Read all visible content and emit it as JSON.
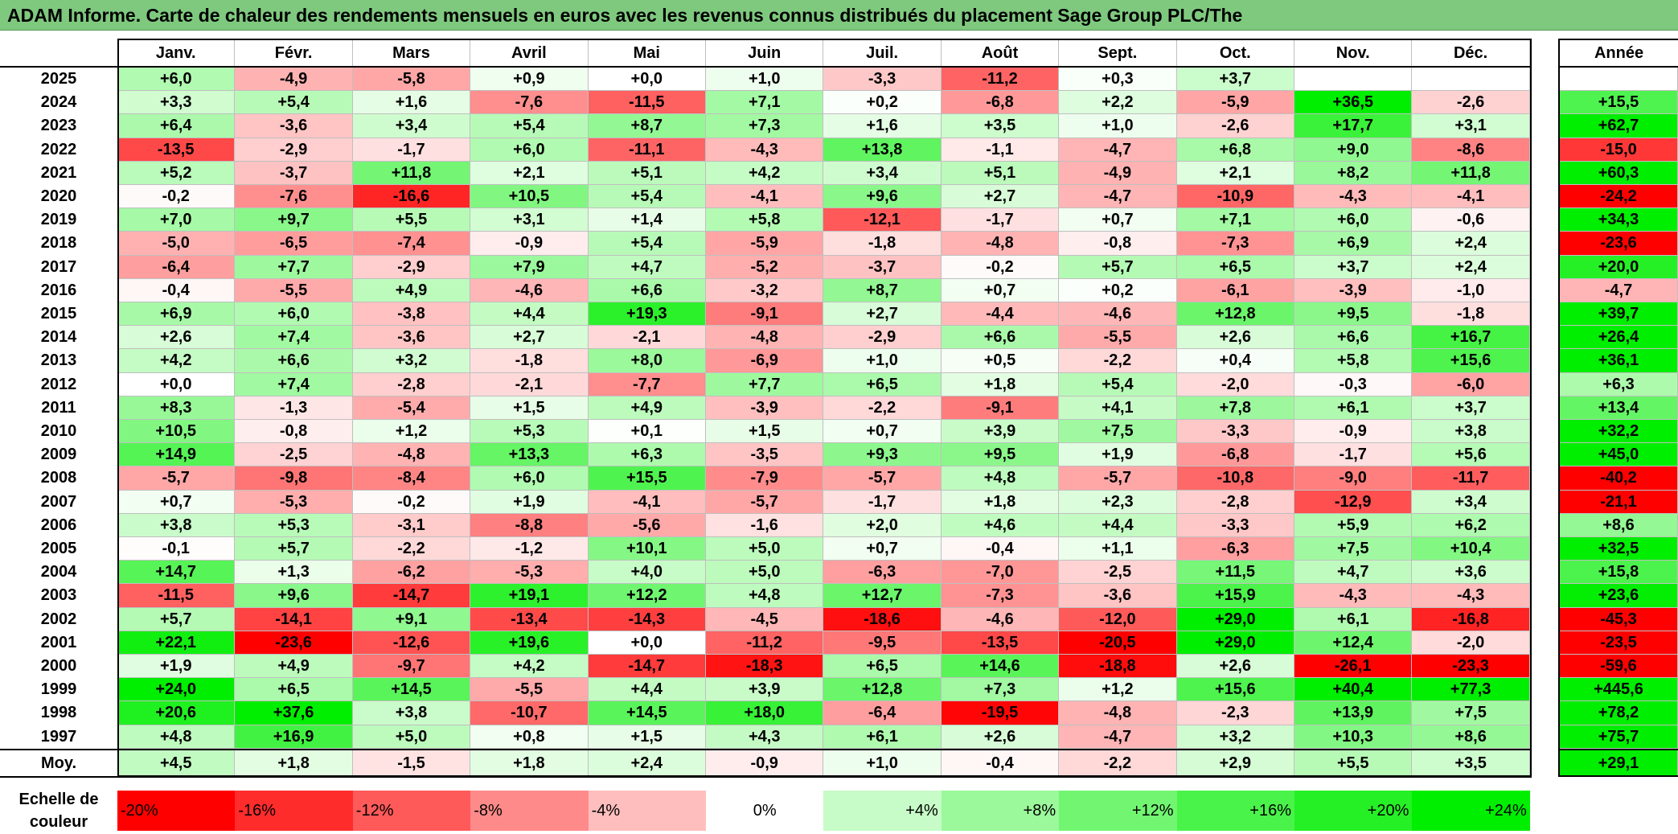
{
  "title": "ADAM Informe. Carte de chaleur des rendements mensuels en euros avec les revenus connus distribués du placement Sage Group PLC/The",
  "chart_data": {
    "type": "heatmap",
    "title": "ADAM Informe. Carte de chaleur des rendements mensuels en euros avec les revenus connus distribués du placement Sage Group PLC/The",
    "months": [
      "Janv.",
      "Févr.",
      "Mars",
      "Avril",
      "Mai",
      "Juin",
      "Juil.",
      "Août",
      "Sept.",
      "Oct.",
      "Nov.",
      "Déc."
    ],
    "year_header": "Année",
    "rows": [
      {
        "year": "2025",
        "values": [
          "+6,0",
          "-4,9",
          "-5,8",
          "+0,9",
          "+0,0",
          "+1,0",
          "-3,3",
          "-11,2",
          "+0,3",
          "+3,7",
          "",
          ""
        ],
        "annual": ""
      },
      {
        "year": "2024",
        "values": [
          "+3,3",
          "+5,4",
          "+1,6",
          "-7,6",
          "-11,5",
          "+7,1",
          "+0,2",
          "-6,8",
          "+2,2",
          "-5,9",
          "+36,5",
          "-2,6"
        ],
        "annual": "+15,5"
      },
      {
        "year": "2023",
        "values": [
          "+6,4",
          "-3,6",
          "+3,4",
          "+5,4",
          "+8,7",
          "+7,3",
          "+1,6",
          "+3,5",
          "+1,0",
          "-2,6",
          "+17,7",
          "+3,1"
        ],
        "annual": "+62,7"
      },
      {
        "year": "2022",
        "values": [
          "-13,5",
          "-2,9",
          "-1,7",
          "+6,0",
          "-11,1",
          "-4,3",
          "+13,8",
          "-1,1",
          "-4,7",
          "+6,8",
          "+9,0",
          "-8,6"
        ],
        "annual": "-15,0"
      },
      {
        "year": "2021",
        "values": [
          "+5,2",
          "-3,7",
          "+11,8",
          "+2,1",
          "+5,1",
          "+4,2",
          "+3,4",
          "+5,1",
          "-4,9",
          "+2,1",
          "+8,2",
          "+11,8"
        ],
        "annual": "+60,3"
      },
      {
        "year": "2020",
        "values": [
          "-0,2",
          "-7,6",
          "-16,6",
          "+10,5",
          "+5,4",
          "-4,1",
          "+9,6",
          "+2,7",
          "-4,7",
          "-10,9",
          "-4,3",
          "-4,1"
        ],
        "annual": "-24,2"
      },
      {
        "year": "2019",
        "values": [
          "+7,0",
          "+9,7",
          "+5,5",
          "+3,1",
          "+1,4",
          "+5,8",
          "-12,1",
          "-1,7",
          "+0,7",
          "+7,1",
          "+6,0",
          "-0,6"
        ],
        "annual": "+34,3"
      },
      {
        "year": "2018",
        "values": [
          "-5,0",
          "-6,5",
          "-7,4",
          "-0,9",
          "+5,4",
          "-5,9",
          "-1,8",
          "-4,8",
          "-0,8",
          "-7,3",
          "+6,9",
          "+2,4"
        ],
        "annual": "-23,6"
      },
      {
        "year": "2017",
        "values": [
          "-6,4",
          "+7,7",
          "-2,9",
          "+7,9",
          "+4,7",
          "-5,2",
          "-3,7",
          "-0,2",
          "+5,7",
          "+6,5",
          "+3,7",
          "+2,4"
        ],
        "annual": "+20,0"
      },
      {
        "year": "2016",
        "values": [
          "-0,4",
          "-5,5",
          "+4,9",
          "-4,6",
          "+6,6",
          "-3,2",
          "+8,7",
          "+0,7",
          "+0,2",
          "-6,1",
          "-3,9",
          "-1,0"
        ],
        "annual": "-4,7"
      },
      {
        "year": "2015",
        "values": [
          "+6,9",
          "+6,0",
          "-3,8",
          "+4,4",
          "+19,3",
          "-9,1",
          "+2,7",
          "-4,4",
          "-4,6",
          "+12,8",
          "+9,5",
          "-1,8"
        ],
        "annual": "+39,7"
      },
      {
        "year": "2014",
        "values": [
          "+2,6",
          "+7,4",
          "-3,6",
          "+2,7",
          "-2,1",
          "-4,8",
          "-2,9",
          "+6,6",
          "-5,5",
          "+2,6",
          "+6,6",
          "+16,7"
        ],
        "annual": "+26,4"
      },
      {
        "year": "2013",
        "values": [
          "+4,2",
          "+6,6",
          "+3,2",
          "-1,8",
          "+8,0",
          "-6,9",
          "+1,0",
          "+0,5",
          "-2,2",
          "+0,4",
          "+5,8",
          "+15,6"
        ],
        "annual": "+36,1"
      },
      {
        "year": "2012",
        "values": [
          "+0,0",
          "+7,4",
          "-2,8",
          "-2,1",
          "-7,7",
          "+7,7",
          "+6,5",
          "+1,8",
          "+5,4",
          "-2,0",
          "-0,3",
          "-6,0"
        ],
        "annual": "+6,3"
      },
      {
        "year": "2011",
        "values": [
          "+8,3",
          "-1,3",
          "-5,4",
          "+1,5",
          "+4,9",
          "-3,9",
          "-2,2",
          "-9,1",
          "+4,1",
          "+7,8",
          "+6,1",
          "+3,7"
        ],
        "annual": "+13,4"
      },
      {
        "year": "2010",
        "values": [
          "+10,5",
          "-0,8",
          "+1,2",
          "+5,3",
          "+0,1",
          "+1,5",
          "+0,7",
          "+3,9",
          "+7,5",
          "-3,3",
          "-0,9",
          "+3,8"
        ],
        "annual": "+32,2"
      },
      {
        "year": "2009",
        "values": [
          "+14,9",
          "-2,5",
          "-4,8",
          "+13,3",
          "+6,3",
          "-3,5",
          "+9,3",
          "+9,5",
          "+1,9",
          "-6,8",
          "-1,7",
          "+5,6"
        ],
        "annual": "+45,0"
      },
      {
        "year": "2008",
        "values": [
          "-5,7",
          "-9,8",
          "-8,4",
          "+6,0",
          "+15,5",
          "-7,9",
          "-5,7",
          "+4,8",
          "-5,7",
          "-10,8",
          "-9,0",
          "-11,7"
        ],
        "annual": "-40,2"
      },
      {
        "year": "2007",
        "values": [
          "+0,7",
          "-5,3",
          "-0,2",
          "+1,9",
          "-4,1",
          "-5,7",
          "-1,7",
          "+1,8",
          "+2,3",
          "-2,8",
          "-12,9",
          "+3,4"
        ],
        "annual": "-21,1"
      },
      {
        "year": "2006",
        "values": [
          "+3,8",
          "+5,3",
          "-3,1",
          "-8,8",
          "-5,6",
          "-1,6",
          "+2,0",
          "+4,6",
          "+4,4",
          "-3,3",
          "+5,9",
          "+6,2"
        ],
        "annual": "+8,6"
      },
      {
        "year": "2005",
        "values": [
          "-0,1",
          "+5,7",
          "-2,2",
          "-1,2",
          "+10,1",
          "+5,0",
          "+0,7",
          "-0,4",
          "+1,1",
          "-6,3",
          "+7,5",
          "+10,4"
        ],
        "annual": "+32,5"
      },
      {
        "year": "2004",
        "values": [
          "+14,7",
          "+1,3",
          "-6,2",
          "-5,3",
          "+4,0",
          "+5,0",
          "-6,3",
          "-7,0",
          "-2,5",
          "+11,5",
          "+4,7",
          "+3,6"
        ],
        "annual": "+15,8"
      },
      {
        "year": "2003",
        "values": [
          "-11,5",
          "+9,6",
          "-14,7",
          "+19,1",
          "+12,2",
          "+4,8",
          "+12,7",
          "-7,3",
          "-3,6",
          "+15,9",
          "-4,3",
          "-4,3"
        ],
        "annual": "+23,6"
      },
      {
        "year": "2002",
        "values": [
          "+5,7",
          "-14,1",
          "+9,1",
          "-13,4",
          "-14,3",
          "-4,5",
          "-18,6",
          "-4,6",
          "-12,0",
          "+29,0",
          "+6,1",
          "-16,8"
        ],
        "annual": "-45,3"
      },
      {
        "year": "2001",
        "values": [
          "+22,1",
          "-23,6",
          "-12,6",
          "+19,6",
          "+0,0",
          "-11,2",
          "-9,5",
          "-13,5",
          "-20,5",
          "+29,0",
          "+12,4",
          "-2,0"
        ],
        "annual": "-23,5"
      },
      {
        "year": "2000",
        "values": [
          "+1,9",
          "+4,9",
          "-9,7",
          "+4,2",
          "-14,7",
          "-18,3",
          "+6,5",
          "+14,6",
          "-18,8",
          "+2,6",
          "-26,1",
          "-23,3"
        ],
        "annual": "-59,6"
      },
      {
        "year": "1999",
        "values": [
          "+24,0",
          "+6,5",
          "+14,5",
          "-5,5",
          "+4,4",
          "+3,9",
          "+12,8",
          "+7,3",
          "+1,2",
          "+15,6",
          "+40,4",
          "+77,3"
        ],
        "annual": "+445,6"
      },
      {
        "year": "1998",
        "values": [
          "+20,6",
          "+37,6",
          "+3,8",
          "-10,7",
          "+14,5",
          "+18,0",
          "-6,4",
          "-19,5",
          "-4,8",
          "-2,3",
          "+13,9",
          "+7,5"
        ],
        "annual": "+78,2"
      },
      {
        "year": "1997",
        "values": [
          "+4,8",
          "+16,9",
          "+5,0",
          "+0,8",
          "+1,5",
          "+4,3",
          "+6,1",
          "+2,6",
          "-4,7",
          "+3,2",
          "+10,3",
          "+8,6"
        ],
        "annual": "+75,7"
      }
    ],
    "average": {
      "label": "Moy.",
      "values": [
        "+4,5",
        "+1,8",
        "-1,5",
        "+1,8",
        "+2,4",
        "-0,9",
        "+1,0",
        "-0,4",
        "-2,2",
        "+2,9",
        "+5,5",
        "+3,5"
      ],
      "annual": "+29,1"
    },
    "color_scale": {
      "label": "Echelle de couleur",
      "steps": [
        {
          "label": "-20%",
          "value": -20
        },
        {
          "label": "-16%",
          "value": -16
        },
        {
          "label": "-12%",
          "value": -12
        },
        {
          "label": "-8%",
          "value": -8
        },
        {
          "label": "-4%",
          "value": -4
        },
        {
          "label": "0%",
          "value": 0
        },
        {
          "label": "+4%",
          "value": 4
        },
        {
          "label": "+8%",
          "value": 8
        },
        {
          "label": "+12%",
          "value": 12
        },
        {
          "label": "+16%",
          "value": 16
        },
        {
          "label": "+20%",
          "value": 20
        },
        {
          "label": "+24%",
          "value": 24
        }
      ],
      "negative_color": "#ff0000",
      "neutral_color": "#ffffff",
      "positive_color": "#00ee00"
    }
  }
}
